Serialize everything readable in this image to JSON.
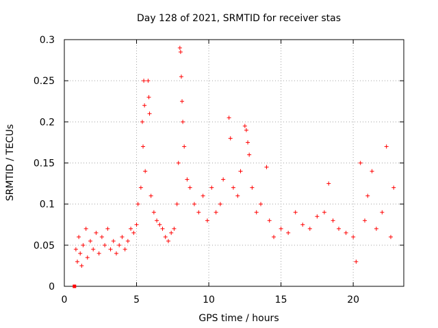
{
  "chart_data": {
    "type": "scatter",
    "title": "Day 128 of 2021, SRMTID for receiver stas",
    "xlabel": "GPS time / hours",
    "ylabel": "SRMTID / TECUs",
    "xlim": [
      0,
      23.5
    ],
    "ylim": [
      0,
      0.3
    ],
    "xticks": [
      0,
      5,
      10,
      15,
      20
    ],
    "yticks": [
      0,
      0.05,
      0.1,
      0.15,
      0.2,
      0.25,
      0.3
    ],
    "xtick_labels": [
      "0",
      "5",
      "10",
      "15",
      "20"
    ],
    "ytick_labels": [
      "0",
      "0.05",
      "0.1",
      "0.15",
      "0.2",
      "0.25",
      "0.3"
    ],
    "grid": true,
    "marker": "+",
    "marker_color": "#ff0000",
    "series": [
      {
        "name": "SRMTID",
        "sample_points": [
          [
            0.7,
            0.0
          ],
          [
            0.8,
            0.045
          ],
          [
            0.9,
            0.03
          ],
          [
            1.0,
            0.06
          ],
          [
            1.1,
            0.04
          ],
          [
            1.2,
            0.025
          ],
          [
            1.3,
            0.05
          ],
          [
            1.5,
            0.07
          ],
          [
            1.6,
            0.035
          ],
          [
            1.8,
            0.055
          ],
          [
            2.0,
            0.045
          ],
          [
            2.2,
            0.065
          ],
          [
            2.4,
            0.04
          ],
          [
            2.6,
            0.06
          ],
          [
            2.8,
            0.05
          ],
          [
            3.0,
            0.07
          ],
          [
            3.2,
            0.045
          ],
          [
            3.4,
            0.055
          ],
          [
            3.6,
            0.04
          ],
          [
            3.8,
            0.05
          ],
          [
            4.0,
            0.06
          ],
          [
            4.2,
            0.045
          ],
          [
            4.4,
            0.055
          ],
          [
            4.6,
            0.07
          ],
          [
            4.8,
            0.065
          ],
          [
            5.0,
            0.075
          ],
          [
            5.1,
            0.1
          ],
          [
            5.3,
            0.12
          ],
          [
            5.4,
            0.2
          ],
          [
            5.45,
            0.17
          ],
          [
            5.5,
            0.25
          ],
          [
            5.55,
            0.22
          ],
          [
            5.6,
            0.14
          ],
          [
            5.8,
            0.25
          ],
          [
            5.85,
            0.23
          ],
          [
            5.9,
            0.21
          ],
          [
            6.0,
            0.11
          ],
          [
            6.2,
            0.09
          ],
          [
            6.4,
            0.08
          ],
          [
            6.6,
            0.075
          ],
          [
            6.8,
            0.07
          ],
          [
            7.0,
            0.06
          ],
          [
            7.2,
            0.055
          ],
          [
            7.4,
            0.065
          ],
          [
            7.6,
            0.07
          ],
          [
            7.8,
            0.1
          ],
          [
            7.9,
            0.15
          ],
          [
            8.0,
            0.29
          ],
          [
            8.05,
            0.285
          ],
          [
            8.1,
            0.255
          ],
          [
            8.15,
            0.225
          ],
          [
            8.2,
            0.2
          ],
          [
            8.3,
            0.17
          ],
          [
            8.5,
            0.13
          ],
          [
            8.7,
            0.12
          ],
          [
            9.0,
            0.1
          ],
          [
            9.3,
            0.09
          ],
          [
            9.6,
            0.11
          ],
          [
            9.9,
            0.08
          ],
          [
            10.2,
            0.12
          ],
          [
            10.5,
            0.09
          ],
          [
            10.8,
            0.1
          ],
          [
            11.0,
            0.13
          ],
          [
            11.4,
            0.205
          ],
          [
            11.5,
            0.18
          ],
          [
            11.7,
            0.12
          ],
          [
            12.0,
            0.11
          ],
          [
            12.2,
            0.14
          ],
          [
            12.5,
            0.195
          ],
          [
            12.6,
            0.19
          ],
          [
            12.7,
            0.175
          ],
          [
            12.8,
            0.16
          ],
          [
            13.0,
            0.12
          ],
          [
            13.3,
            0.09
          ],
          [
            13.6,
            0.1
          ],
          [
            14.0,
            0.145
          ],
          [
            14.2,
            0.08
          ],
          [
            14.5,
            0.06
          ],
          [
            15.0,
            0.07
          ],
          [
            15.5,
            0.065
          ],
          [
            16.0,
            0.09
          ],
          [
            16.5,
            0.075
          ],
          [
            17.0,
            0.07
          ],
          [
            17.5,
            0.085
          ],
          [
            18.0,
            0.09
          ],
          [
            18.3,
            0.125
          ],
          [
            18.6,
            0.08
          ],
          [
            19.0,
            0.07
          ],
          [
            19.5,
            0.065
          ],
          [
            20.0,
            0.06
          ],
          [
            20.2,
            0.03
          ],
          [
            20.5,
            0.15
          ],
          [
            20.8,
            0.08
          ],
          [
            21.0,
            0.11
          ],
          [
            21.3,
            0.14
          ],
          [
            21.6,
            0.07
          ],
          [
            22.0,
            0.09
          ],
          [
            22.3,
            0.17
          ],
          [
            22.6,
            0.06
          ],
          [
            22.8,
            0.12
          ]
        ]
      }
    ]
  }
}
